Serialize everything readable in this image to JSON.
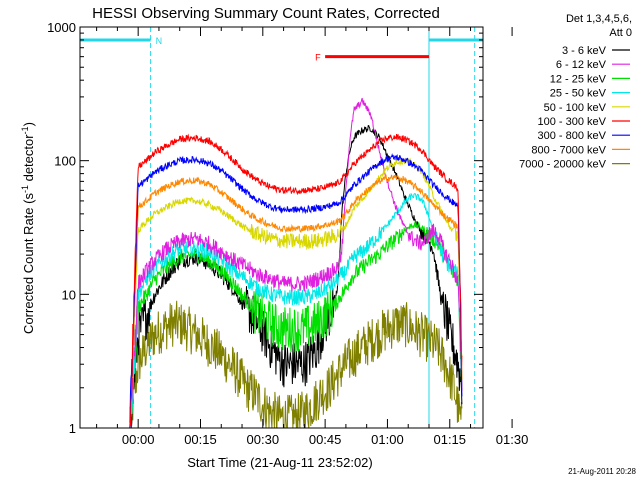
{
  "chart_data": {
    "type": "line",
    "title": "HESSI Observing Summary Count Rates, Corrected",
    "xlabel": "Start Time (21-Aug-11 23:52:02)",
    "ylabel_main": "Corrected Count Rate (s",
    "ylabel_sup1": "-1",
    "ylabel_mid": " detector",
    "ylabel_sup2": "-1",
    "ylabel_end": ")",
    "yscale": "log",
    "ylim": [
      1,
      1000
    ],
    "xlim_minutes": [
      -6,
      91
    ],
    "x_tick_labels": [
      "00:00",
      "00:15",
      "00:30",
      "00:45",
      "01:00",
      "01:15",
      "01:30"
    ],
    "x_tick_minutes": [
      8,
      23,
      38,
      53,
      68,
      83,
      98
    ],
    "y_tick_labels": [
      "1",
      "10",
      "100",
      "1000"
    ],
    "y_tick_values": [
      1,
      10,
      100,
      1000
    ],
    "legend_position": "right",
    "legend_header": [
      "Det 1,3,4,5,6,",
      "Att 0"
    ],
    "series": [
      {
        "name": "3 - 6 keV",
        "color": "#000000",
        "x": [
          6,
          8,
          10,
          12,
          15,
          18,
          22,
          25,
          28,
          31,
          34,
          37,
          40,
          43,
          46,
          48,
          51,
          53,
          55,
          56,
          57,
          58,
          59,
          60,
          62,
          64,
          66,
          68,
          70,
          72,
          74,
          76,
          77,
          78,
          79,
          80,
          81,
          82,
          83,
          84,
          85,
          86
        ],
        "y": [
          1,
          5,
          7,
          10,
          14,
          18,
          19,
          17,
          14,
          11,
          8,
          6,
          4,
          3,
          3,
          3,
          4,
          6,
          8,
          11,
          40,
          80,
          120,
          150,
          170,
          175,
          150,
          110,
          80,
          55,
          40,
          30,
          28,
          25,
          22,
          14,
          9,
          7,
          5,
          4,
          3,
          2
        ]
      },
      {
        "name": "6 - 12 keV",
        "color": "#e020e0",
        "x": [
          6,
          8,
          10,
          12,
          15,
          18,
          22,
          25,
          28,
          31,
          34,
          37,
          40,
          43,
          46,
          48,
          51,
          53,
          55,
          56,
          57,
          58,
          59,
          60,
          62,
          64,
          66,
          68,
          70,
          72,
          74,
          76,
          77,
          78,
          79,
          80,
          81,
          82,
          83,
          84,
          85,
          86
        ],
        "y": [
          1,
          12,
          15,
          18,
          22,
          25,
          26,
          24,
          21,
          18,
          16,
          14,
          13,
          12,
          12,
          12,
          13,
          14,
          15,
          16,
          20,
          60,
          150,
          240,
          280,
          220,
          120,
          70,
          45,
          32,
          26,
          24,
          25,
          28,
          30,
          28,
          24,
          20,
          18,
          15,
          12,
          2
        ]
      },
      {
        "name": "12 - 25 keV",
        "color": "#00e000",
        "x": [
          6,
          8,
          10,
          12,
          15,
          18,
          22,
          25,
          28,
          31,
          34,
          37,
          40,
          43,
          46,
          48,
          51,
          53,
          55,
          56,
          57,
          58,
          59,
          60,
          62,
          64,
          66,
          68,
          70,
          72,
          74,
          76,
          77,
          78,
          79,
          80,
          81,
          82,
          83,
          84,
          85,
          86
        ],
        "y": [
          1,
          8,
          10,
          13,
          16,
          19,
          20,
          18,
          15,
          12,
          9,
          7,
          6,
          5.5,
          5.5,
          5.5,
          6,
          7,
          8,
          9,
          10,
          11,
          13,
          14,
          16,
          18,
          20,
          23,
          26,
          30,
          33,
          32,
          30,
          28,
          26,
          24,
          21,
          18,
          16,
          14,
          13,
          2
        ]
      },
      {
        "name": "25 - 50 keV",
        "color": "#00e8e8",
        "x": [
          6,
          8,
          10,
          12,
          15,
          18,
          22,
          25,
          28,
          31,
          34,
          37,
          40,
          43,
          46,
          48,
          51,
          53,
          55,
          56,
          57,
          58,
          59,
          60,
          62,
          64,
          66,
          68,
          70,
          72,
          74,
          76,
          77,
          78,
          79,
          80,
          81,
          82,
          83,
          84,
          85,
          86
        ],
        "y": [
          1,
          10,
          13,
          16,
          19,
          22,
          22,
          21,
          18,
          15,
          13,
          11,
          10,
          9.5,
          9.5,
          9.5,
          10,
          11,
          12,
          13,
          14,
          15,
          17,
          19,
          21,
          24,
          28,
          33,
          40,
          48,
          55,
          52,
          46,
          38,
          30,
          25,
          21,
          18,
          16,
          15,
          14,
          2
        ]
      },
      {
        "name": "50 - 100 keV",
        "color": "#d8d800",
        "x": [
          6,
          8,
          10,
          12,
          15,
          18,
          22,
          25,
          28,
          31,
          34,
          37,
          40,
          43,
          46,
          48,
          51,
          53,
          55,
          56,
          57,
          58,
          59,
          60,
          62,
          64,
          66,
          68,
          70,
          72,
          74,
          76,
          77,
          78,
          79,
          80,
          81,
          82,
          83,
          84,
          85,
          86
        ],
        "y": [
          1,
          30,
          35,
          40,
          45,
          50,
          50,
          47,
          42,
          36,
          31,
          28,
          26,
          25,
          25,
          25,
          25,
          26,
          27,
          28,
          30,
          33,
          38,
          44,
          52,
          62,
          75,
          88,
          98,
          100,
          95,
          85,
          75,
          65,
          55,
          48,
          42,
          36,
          32,
          30,
          28,
          2
        ]
      },
      {
        "name": "100 - 300 keV",
        "color": "#ff0000",
        "x": [
          6,
          8,
          10,
          12,
          15,
          18,
          22,
          25,
          28,
          31,
          34,
          37,
          40,
          43,
          46,
          48,
          51,
          53,
          55,
          56,
          57,
          58,
          59,
          60,
          62,
          64,
          66,
          68,
          70,
          72,
          74,
          76,
          77,
          78,
          79,
          80,
          81,
          82,
          83,
          84,
          85,
          86
        ],
        "y": [
          1,
          90,
          100,
          115,
          130,
          145,
          148,
          140,
          122,
          100,
          82,
          70,
          63,
          60,
          60,
          60,
          61,
          63,
          66,
          68,
          72,
          78,
          86,
          95,
          108,
          122,
          138,
          148,
          150,
          146,
          135,
          122,
          112,
          102,
          92,
          86,
          80,
          74,
          70,
          66,
          62,
          2
        ]
      },
      {
        "name": "300 - 800 keV",
        "color": "#0000ff",
        "x": [
          6,
          8,
          10,
          12,
          15,
          18,
          22,
          25,
          28,
          31,
          34,
          37,
          40,
          43,
          46,
          48,
          51,
          53,
          55,
          56,
          57,
          58,
          59,
          60,
          62,
          64,
          66,
          68,
          70,
          72,
          74,
          76,
          77,
          78,
          79,
          80,
          81,
          82,
          83,
          84,
          85,
          86
        ],
        "y": [
          1,
          65,
          72,
          82,
          92,
          100,
          102,
          96,
          84,
          70,
          58,
          50,
          45,
          43,
          43,
          43,
          44,
          45,
          47,
          48,
          51,
          55,
          60,
          66,
          75,
          85,
          96,
          104,
          106,
          102,
          94,
          85,
          78,
          72,
          66,
          62,
          58,
          54,
          51,
          48,
          46,
          2
        ]
      },
      {
        "name": "800 - 7000 keV",
        "color": "#ff8800",
        "x": [
          6,
          8,
          10,
          12,
          15,
          18,
          22,
          25,
          28,
          31,
          34,
          37,
          40,
          43,
          46,
          48,
          51,
          53,
          55,
          56,
          57,
          58,
          59,
          60,
          62,
          64,
          66,
          68,
          70,
          72,
          74,
          76,
          77,
          78,
          79,
          80,
          81,
          82,
          83,
          84,
          85,
          86
        ],
        "y": [
          1,
          45,
          50,
          57,
          64,
          70,
          71,
          67,
          58,
          49,
          41,
          36,
          33,
          31,
          31,
          31,
          32,
          33,
          34,
          35,
          37,
          40,
          44,
          49,
          56,
          63,
          70,
          74,
          75,
          72,
          66,
          60,
          55,
          51,
          47,
          44,
          41,
          38,
          36,
          34,
          32,
          2
        ]
      },
      {
        "name": "7000 - 20000 keV",
        "color": "#808000",
        "x": [
          6,
          8,
          10,
          12,
          14,
          16,
          18,
          20,
          22,
          24,
          26,
          28,
          30,
          32,
          34,
          36,
          38,
          40,
          42,
          44,
          46,
          48,
          50,
          52,
          54,
          56,
          58,
          60,
          62,
          64,
          66,
          68,
          70,
          72,
          74,
          76,
          78,
          80,
          82,
          84,
          86
        ],
        "y": [
          1,
          3,
          4,
          5,
          5.5,
          6,
          6,
          5.5,
          5,
          4.5,
          4,
          3.5,
          3,
          2.5,
          2,
          1.8,
          1.5,
          1.3,
          1.2,
          1.2,
          1.2,
          1.3,
          1.5,
          1.8,
          2,
          2.5,
          3,
          3.5,
          4,
          4.5,
          5,
          5.5,
          6,
          6,
          5.5,
          5,
          4.5,
          4,
          3,
          2,
          1
        ]
      }
    ],
    "annotations": {
      "night_label": "N",
      "flare_label": "F",
      "night_bars": [
        [
          -6,
          11
        ],
        [
          78,
          91
        ]
      ],
      "night_dashed_x": [
        11,
        89
      ],
      "night_solid_x": [
        78
      ],
      "flare_bar": [
        53,
        78
      ],
      "night_bar_value": 800,
      "flare_bar_value": 600
    },
    "timestamp": "21-Aug-2011 20:28"
  }
}
